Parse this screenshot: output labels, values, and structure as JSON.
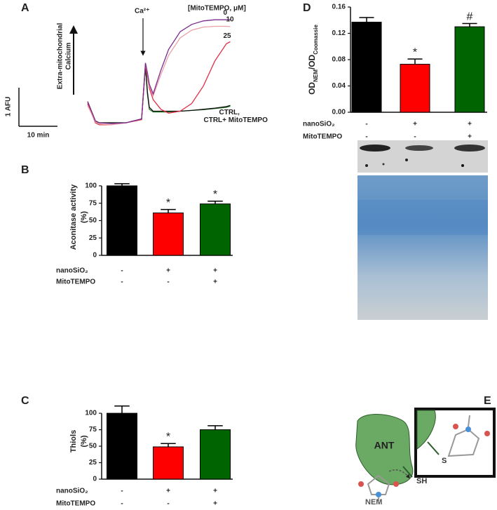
{
  "chart_data": [
    {
      "panel": "A",
      "type": "line",
      "ylabel": [
        "Extra-mitochondrial",
        "Calcium"
      ],
      "annotation": "Ca²⁺",
      "legend_title": "[MitoTEMPO, μM]",
      "x": [
        0,
        2,
        3,
        6,
        10,
        14,
        15,
        15.5,
        16,
        17,
        19,
        21,
        24,
        27,
        30,
        33,
        36,
        37
      ],
      "xlim": [
        0,
        38
      ],
      "ylim": [
        -0.6,
        2.9
      ],
      "scale_bars": [
        {
          "value": 1,
          "label": "1 AFU"
        },
        {
          "value": 10,
          "label": "10 min"
        }
      ],
      "series": [
        {
          "name": "CTRL+ MitoTEMPO",
          "color": "#1f7a1f",
          "values": [
            0.5,
            0.03,
            0,
            0,
            0,
            0.1,
            1.45,
            0.75,
            0.35,
            0.28,
            0.28,
            0.28,
            0.3,
            0.32,
            0.34,
            0.37,
            0.4,
            0.43
          ]
        },
        {
          "name": "CTRL,",
          "color": "#111111",
          "values": [
            0.55,
            0.05,
            0,
            0,
            0,
            0.1,
            1.5,
            0.8,
            0.4,
            0.3,
            0.3,
            0.3,
            0.3,
            0.32,
            0.35,
            0.38,
            0.42,
            0.45
          ]
        },
        {
          "name": "25",
          "color": "#e0304a",
          "values": [
            0.5,
            0,
            -0.05,
            -0.05,
            0,
            0.08,
            1.5,
            1.2,
            0.9,
            0.6,
            0.35,
            0.25,
            0.3,
            0.5,
            0.95,
            1.6,
            2.05,
            2.1
          ]
        },
        {
          "name": "10",
          "color": "#eaa0a6",
          "values": [
            0.45,
            0.02,
            -0.03,
            -0.05,
            0,
            0.1,
            1.55,
            1.25,
            0.95,
            0.7,
            1.25,
            1.75,
            2.2,
            2.4,
            2.48,
            2.5,
            2.5,
            2.49
          ]
        },
        {
          "name": "0",
          "color": "#7b2a8e",
          "values": [
            0.55,
            0.05,
            0,
            -0.02,
            0,
            0.1,
            1.55,
            1.3,
            1,
            0.75,
            1.36,
            1.9,
            2.36,
            2.55,
            2.64,
            2.67,
            2.67,
            2.67
          ]
        }
      ]
    },
    {
      "panel": "B",
      "type": "bar",
      "ylabel": [
        "Aconitase activity",
        "(%)"
      ],
      "categories": [
        null,
        null,
        null
      ],
      "values": [
        100,
        61,
        74
      ],
      "errors": [
        3,
        5,
        4
      ],
      "colors": [
        "#000000",
        "#ff0000",
        "#006400"
      ],
      "significance": [
        null,
        "*",
        "*"
      ],
      "ylim": [
        0,
        110
      ],
      "yticks": [
        0,
        25,
        50,
        75,
        100
      ],
      "conditions": [
        {
          "label": "nanoSiO₂",
          "signs": [
            "-",
            "+",
            "+"
          ]
        },
        {
          "label": "MitoTEMPO",
          "signs": [
            "-",
            "-",
            "+"
          ]
        }
      ]
    },
    {
      "panel": "C",
      "type": "bar",
      "ylabel": [
        "Thiols",
        "(%)"
      ],
      "categories": [
        null,
        null,
        null
      ],
      "values": [
        100,
        49,
        75
      ],
      "errors": [
        11,
        5,
        6
      ],
      "colors": [
        "#000000",
        "#ff0000",
        "#006400"
      ],
      "significance": [
        null,
        "*",
        null
      ],
      "ylim": [
        0,
        115
      ],
      "yticks": [
        0,
        25,
        50,
        75,
        100
      ],
      "conditions": [
        {
          "label": "nanoSiO₂",
          "signs": [
            "-",
            "+",
            "+"
          ]
        },
        {
          "label": "MitoTEMPO",
          "signs": [
            "-",
            "-",
            "+"
          ]
        }
      ]
    },
    {
      "panel": "D",
      "type": "bar",
      "ylabel_parts": [
        {
          "text": "OD"
        },
        {
          "text": "NEM",
          "sub": true
        },
        {
          "text": "/OD"
        },
        {
          "text": "Coomassie",
          "sub": true
        }
      ],
      "categories": [
        null,
        null,
        null
      ],
      "values": [
        0.137,
        0.073,
        0.13
      ],
      "errors": [
        0.007,
        0.008,
        0.005
      ],
      "colors": [
        "#000000",
        "#ff0000",
        "#006400"
      ],
      "significance": [
        null,
        "*",
        "#"
      ],
      "ylim": [
        0,
        0.16
      ],
      "yticks": [
        {
          "value": 0,
          "label": "0.00"
        },
        0.04,
        0.08,
        0.12,
        0.16
      ],
      "conditions": [
        {
          "label": "nanoSiO₂",
          "signs": [
            "-",
            "+",
            "+"
          ]
        },
        {
          "label": "MitoTEMPO",
          "signs": [
            "-",
            "-",
            "+"
          ]
        }
      ]
    }
  ],
  "diagram": {
    "panel": "E",
    "labels": {
      "ant": "ANT",
      "sh": "SH",
      "s": "S",
      "nem": "NEM"
    }
  }
}
